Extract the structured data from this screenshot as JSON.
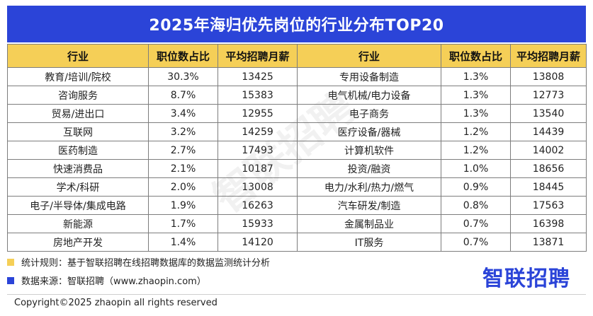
{
  "header": {
    "title": "2025年海归优先岗位的行业分布TOP20"
  },
  "table": {
    "columns": [
      "行业",
      "职位数占比",
      "平均招聘月薪",
      "行业",
      "职位数占比",
      "平均招聘月薪"
    ],
    "rows": [
      [
        "教育/培训/院校",
        "30.3%",
        "13425",
        "专用设备制造",
        "1.3%",
        "13808"
      ],
      [
        "咨询服务",
        "8.7%",
        "15383",
        "电气机械/电力设备",
        "1.3%",
        "12773"
      ],
      [
        "贸易/进出口",
        "3.4%",
        "12955",
        "电子商务",
        "1.3%",
        "13540"
      ],
      [
        "互联网",
        "3.2%",
        "14259",
        "医疗设备/器械",
        "1.2%",
        "14439"
      ],
      [
        "医药制造",
        "2.7%",
        "17493",
        "计算机软件",
        "1.2%",
        "14002"
      ],
      [
        "快速消费品",
        "2.1%",
        "10187",
        "投资/融资",
        "1.0%",
        "18656"
      ],
      [
        "学术/科研",
        "2.0%",
        "13008",
        "电力/水利/热力/燃气",
        "0.9%",
        "18445"
      ],
      [
        "电子/半导体/集成电路",
        "1.9%",
        "16263",
        "汽车研发/制造",
        "0.8%",
        "17563"
      ],
      [
        "新能源",
        "1.7%",
        "15933",
        "金属制品业",
        "0.7%",
        "16398"
      ],
      [
        "房地产开发",
        "1.4%",
        "14120",
        "IT服务",
        "0.7%",
        "13871"
      ]
    ]
  },
  "watermark": "智联招聘",
  "notes": {
    "rule": "统计规则：基于智联招聘在线招聘数据库的数据监测统计分析",
    "source": "数据来源：智联招聘（www.zhaopin.com）"
  },
  "brand": "智联招聘",
  "footer": "Copyright©2025 zhaopin all rights reserved",
  "colors": {
    "banner": "#2b44d8",
    "header_row": "#f5cf57",
    "note_yellow": "#f5cf57",
    "note_blue": "#2b44d8"
  }
}
